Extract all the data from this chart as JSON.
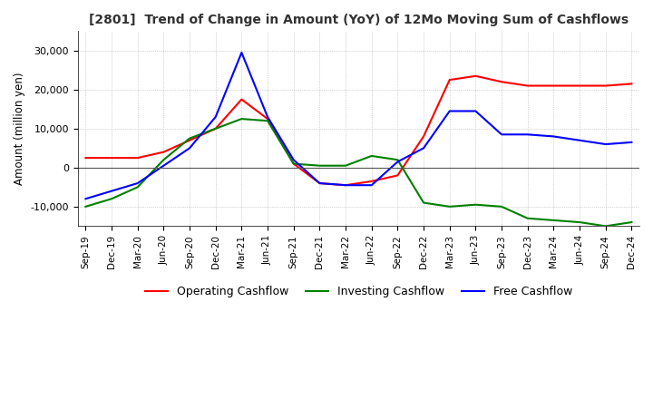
{
  "title": "[2801]  Trend of Change in Amount (YoY) of 12Mo Moving Sum of Cashflows",
  "ylabel": "Amount (million yen)",
  "x_labels": [
    "Sep-19",
    "Dec-19",
    "Mar-20",
    "Jun-20",
    "Sep-20",
    "Dec-20",
    "Mar-21",
    "Jun-21",
    "Sep-21",
    "Dec-21",
    "Mar-22",
    "Jun-22",
    "Sep-22",
    "Dec-22",
    "Mar-23",
    "Jun-23",
    "Sep-23",
    "Dec-23",
    "Mar-24",
    "Jun-24",
    "Sep-24",
    "Dec-24"
  ],
  "operating": [
    2500,
    2500,
    2500,
    4000,
    7000,
    10000,
    17500,
    12500,
    1000,
    -4000,
    -4500,
    -3500,
    -2000,
    8000,
    22500,
    23500,
    22000,
    21000,
    21000,
    21000,
    21000,
    21500
  ],
  "investing": [
    -10000,
    -8000,
    -5000,
    2000,
    7500,
    10000,
    12500,
    12000,
    1000,
    500,
    500,
    3000,
    2000,
    -9000,
    -10000,
    -9500,
    -10000,
    -13000,
    -13500,
    -14000,
    -15000,
    -14000
  ],
  "free": [
    -8000,
    -6000,
    -4000,
    500,
    5000,
    13000,
    29500,
    13000,
    2000,
    -4000,
    -4500,
    -4500,
    1500,
    5000,
    14500,
    14500,
    8500,
    8500,
    8000,
    7000,
    6000,
    6500
  ],
  "operating_color": "#ff0000",
  "investing_color": "#008000",
  "free_color": "#0000ff",
  "ylim": [
    -15000,
    35000
  ],
  "yticks": [
    -10000,
    0,
    10000,
    20000,
    30000
  ],
  "bg_color": "#ffffff",
  "grid_color": "#b0b0b0",
  "grid_style": ":"
}
